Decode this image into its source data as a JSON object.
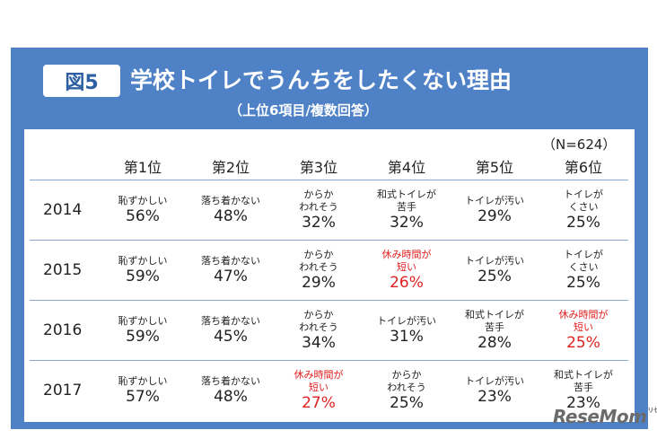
{
  "header": {
    "badge": "図5",
    "title": "学校トイレでうんちをしたくない理由",
    "subtitle": "（上位6項目/複数回答）"
  },
  "note": "（N=624）",
  "columns": [
    "第1位",
    "第2位",
    "第3位",
    "第4位",
    "第5位",
    "第6位"
  ],
  "rows": [
    {
      "year": "2014",
      "cells": [
        {
          "l1": "恥ずかしい",
          "l2": "",
          "pct": "56%"
        },
        {
          "l1": "落ち着かない",
          "l2": "",
          "pct": "48%"
        },
        {
          "l1": "からか",
          "l2": "われそう",
          "pct": "32%"
        },
        {
          "l1": "和式トイレが",
          "l2": "苦手",
          "pct": "32%"
        },
        {
          "l1": "トイレが汚い",
          "l2": "",
          "pct": "29%"
        },
        {
          "l1": "トイレが",
          "l2": "くさい",
          "pct": "25%"
        }
      ]
    },
    {
      "year": "2015",
      "cells": [
        {
          "l1": "恥ずかしい",
          "l2": "",
          "pct": "59%"
        },
        {
          "l1": "落ち着かない",
          "l2": "",
          "pct": "47%"
        },
        {
          "l1": "からか",
          "l2": "われそう",
          "pct": "29%"
        },
        {
          "l1": "休み時間が",
          "l2": "短い",
          "pct": "26%",
          "highlight": true
        },
        {
          "l1": "トイレが汚い",
          "l2": "",
          "pct": "25%"
        },
        {
          "l1": "トイレが",
          "l2": "くさい",
          "pct": "25%"
        }
      ]
    },
    {
      "year": "2016",
      "cells": [
        {
          "l1": "恥ずかしい",
          "l2": "",
          "pct": "59%"
        },
        {
          "l1": "落ち着かない",
          "l2": "",
          "pct": "45%"
        },
        {
          "l1": "からか",
          "l2": "われそう",
          "pct": "34%"
        },
        {
          "l1": "トイレが汚い",
          "l2": "",
          "pct": "31%"
        },
        {
          "l1": "和式トイレが",
          "l2": "苦手",
          "pct": "28%"
        },
        {
          "l1": "休み時間が",
          "l2": "短い",
          "pct": "25%",
          "highlight": true
        }
      ]
    },
    {
      "year": "2017",
      "cells": [
        {
          "l1": "恥ずかしい",
          "l2": "",
          "pct": "57%"
        },
        {
          "l1": "落ち着かない",
          "l2": "",
          "pct": "48%"
        },
        {
          "l1": "休み時間が",
          "l2": "短い",
          "pct": "27%",
          "highlight": true
        },
        {
          "l1": "からか",
          "l2": "われそう",
          "pct": "25%"
        },
        {
          "l1": "トイレが汚い",
          "l2": "",
          "pct": "23%"
        },
        {
          "l1": "和式トイレが",
          "l2": "苦手",
          "pct": "23%"
        }
      ]
    }
  ],
  "colors": {
    "frame": "#4f81c7",
    "highlight": "#e02020",
    "badge_text": "#2f5fa3"
  },
  "watermark": {
    "text": "ReseMom",
    "small": "リセマム"
  }
}
